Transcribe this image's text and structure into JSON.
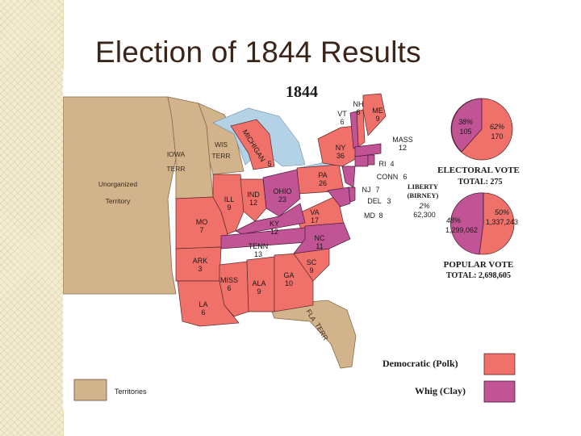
{
  "slide": {
    "title": "Election of 1844 Results"
  },
  "map": {
    "year": "1844",
    "territories": {
      "iowa": "IOWA",
      "iowa_terr": "TERR",
      "unorganized": "Unorganized",
      "unorganized_2": "Territory",
      "wis": "WIS",
      "wis_terr": "TERR",
      "fla": "FLA",
      "fla_terr": "TERR"
    },
    "states": {
      "vt": {
        "abbr": "VT",
        "ev": "6"
      },
      "nh": {
        "abbr": "NH",
        "ev": "6"
      },
      "me": {
        "abbr": "ME",
        "ev": "9"
      },
      "mass": {
        "abbr": "MASS",
        "ev": "12"
      },
      "ri": {
        "abbr": "RI",
        "ev": "4"
      },
      "conn": {
        "abbr": "CONN",
        "ev": "6"
      },
      "ny": {
        "abbr": "NY",
        "ev": "36"
      },
      "nj": {
        "abbr": "NJ",
        "ev": "7"
      },
      "pa": {
        "abbr": "PA",
        "ev": "26"
      },
      "del": {
        "abbr": "DEL",
        "ev": "3"
      },
      "md": {
        "abbr": "MD",
        "ev": "8"
      },
      "va": {
        "abbr": "VA",
        "ev": "17"
      },
      "nc": {
        "abbr": "NC",
        "ev": "11"
      },
      "sc": {
        "abbr": "SC",
        "ev": "9"
      },
      "ga": {
        "abbr": "GA",
        "ev": "10"
      },
      "ala": {
        "abbr": "ALA",
        "ev": "9"
      },
      "miss": {
        "abbr": "MISS",
        "ev": "6"
      },
      "la": {
        "abbr": "LA",
        "ev": "6"
      },
      "ark": {
        "abbr": "ARK",
        "ev": "3"
      },
      "tenn": {
        "abbr": "TENN",
        "ev": "13"
      },
      "ky": {
        "abbr": "KY",
        "ev": "12"
      },
      "ohio": {
        "abbr": "OHIO",
        "ev": "23"
      },
      "ind": {
        "abbr": "IND",
        "ev": "12"
      },
      "ill": {
        "abbr": "ILL",
        "ev": "9"
      },
      "mo": {
        "abbr": "MO",
        "ev": "7"
      },
      "mich": {
        "abbr": "MICHIGAN",
        "ev": "5"
      }
    },
    "electoral": {
      "title": "ELECTORAL VOTE",
      "total": "TOTAL: 275",
      "whig_pct": "38%",
      "whig_votes": "105",
      "dem_pct": "62%",
      "dem_votes": "170"
    },
    "liberty": {
      "name": "LIBERTY",
      "candidate": "(BIRNEY)",
      "pct": "2%",
      "votes": "62,300"
    },
    "popular": {
      "title": "POPULAR VOTE",
      "total": "TOTAL: 2,698,605",
      "whig_pct": "48%",
      "whig_votes": "1,299,062",
      "dem_pct": "50%",
      "dem_votes": "1,337,243"
    },
    "legend": {
      "territories": "Territories",
      "democratic": "Democratic (Polk)",
      "whig": "Whig (Clay)"
    },
    "colors": {
      "democratic": "#f0706a",
      "whig": "#c05494",
      "territory": "#d2b48c",
      "water": "#b4d2e6",
      "background": "#ffffff"
    }
  }
}
